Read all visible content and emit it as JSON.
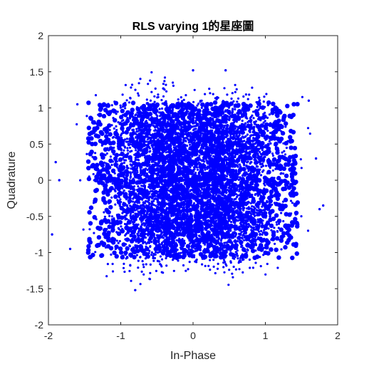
{
  "chart_data": {
    "type": "scatter",
    "title": "RLS varying 1的星座圖",
    "xlabel": "In-Phase",
    "ylabel": "Quadrature",
    "xlim": [
      -2,
      2
    ],
    "ylim": [
      -2,
      2
    ],
    "xticks": [
      "-2",
      "-1",
      "0",
      "1",
      "2"
    ],
    "yticks": [
      "2",
      "1.5",
      "1",
      "0.5",
      "0",
      "-0.5",
      "-1",
      "-1.5",
      "-2"
    ],
    "xtick_values": [
      -2,
      -1,
      0,
      1,
      2
    ],
    "ytick_values": [
      2,
      1.5,
      1,
      0.5,
      0,
      -0.5,
      -1,
      -1.5,
      -2
    ],
    "grid": false,
    "legend": "none",
    "marker_color": "#0000FF",
    "marker": "filled-dot",
    "clusters": [
      {
        "center": [
          -0.5,
          0.5
        ],
        "spread": 0.32
      },
      {
        "center": [
          0.5,
          0.5
        ],
        "spread": 0.32
      },
      {
        "center": [
          -0.5,
          -0.5
        ],
        "spread": 0.32
      },
      {
        "center": [
          0.5,
          -0.5
        ],
        "spread": 0.32
      }
    ],
    "extent_x": [
      -1.7,
      1.7
    ],
    "extent_y": [
      -1.5,
      1.5
    ],
    "outliers": [
      [
        -1.9,
        0.25
      ],
      [
        -1.85,
        0.0
      ],
      [
        -1.95,
        -0.75
      ],
      [
        -1.7,
        -0.95
      ],
      [
        1.75,
        -0.4
      ],
      [
        1.6,
        1.1
      ],
      [
        1.8,
        -0.35
      ],
      [
        -0.8,
        -1.52
      ],
      [
        0.0,
        1.52
      ],
      [
        0.45,
        1.52
      ],
      [
        -1.6,
        1.05
      ],
      [
        1.7,
        0.3
      ]
    ]
  }
}
